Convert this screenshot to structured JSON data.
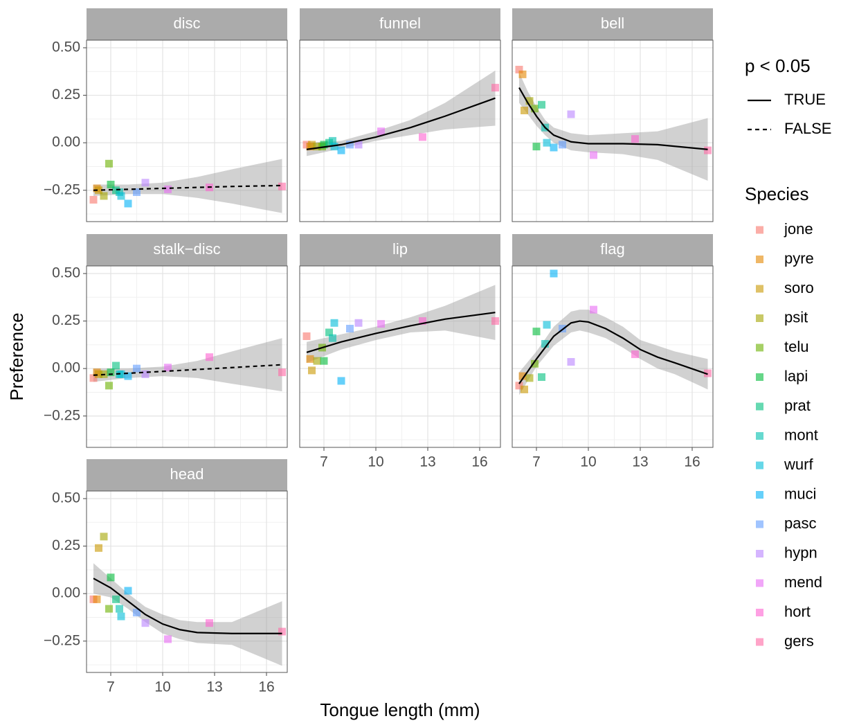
{
  "chart_data": [
    {
      "type": "scatter",
      "title": "disc",
      "x": [
        6.0,
        6.2,
        6.3,
        6.6,
        6.9,
        7.0,
        7.3,
        7.5,
        7.6,
        8.0,
        8.5,
        9.0,
        10.3,
        12.7,
        16.9
      ],
      "values": [
        -0.3,
        -0.24,
        -0.25,
        -0.28,
        -0.11,
        -0.22,
        -0.25,
        -0.26,
        -0.28,
        -0.32,
        -0.26,
        -0.21,
        -0.245,
        -0.235,
        -0.23
      ],
      "fit": {
        "linetype": "dashed",
        "x": [
          6,
          8,
          10,
          12,
          14,
          16.9
        ],
        "values": [
          -0.25,
          -0.245,
          -0.24,
          -0.235,
          -0.23,
          -0.225
        ],
        "lower": [
          -0.28,
          -0.27,
          -0.27,
          -0.29,
          -0.32,
          -0.37
        ],
        "upper": [
          -0.22,
          -0.22,
          -0.21,
          -0.18,
          -0.14,
          -0.085
        ]
      },
      "xlim": [
        5.6,
        17.2
      ],
      "xticks": [
        7,
        10,
        13,
        16
      ],
      "xminor": [
        8.5,
        11.5,
        14.5
      ],
      "ylim": [
        -0.415,
        0.54
      ],
      "yticks": [
        {
          "value": -0.25,
          "label": "−0.25"
        },
        {
          "value": 0,
          "label": "0.00"
        },
        {
          "value": 0.25,
          "label": "0.25"
        },
        {
          "value": 0.5,
          "label": "0.50"
        }
      ],
      "yminor": [
        -0.375,
        -0.125,
        0.125,
        0.375
      ]
    },
    {
      "type": "scatter",
      "title": "funnel",
      "x": [
        6.0,
        6.2,
        6.3,
        6.6,
        6.9,
        7.0,
        7.3,
        7.5,
        7.6,
        8.0,
        8.5,
        9.0,
        10.3,
        12.7,
        16.9
      ],
      "values": [
        -0.01,
        -0.02,
        -0.01,
        -0.02,
        -0.02,
        -0.01,
        0.0,
        0.01,
        -0.02,
        -0.04,
        -0.01,
        -0.01,
        0.06,
        0.03,
        0.29
      ],
      "fit": {
        "linetype": "solid",
        "x": [
          6,
          8,
          10,
          12,
          14,
          16.9
        ],
        "values": [
          -0.035,
          -0.01,
          0.03,
          0.08,
          0.14,
          0.235
        ],
        "lower": [
          -0.07,
          -0.03,
          0.01,
          0.04,
          0.07,
          0.09
        ],
        "upper": [
          0.0,
          0.01,
          0.06,
          0.12,
          0.21,
          0.38
        ]
      },
      "xlim": [
        5.6,
        17.2
      ],
      "xticks": [
        7,
        10,
        13,
        16
      ],
      "xminor": [
        8.5,
        11.5,
        14.5
      ],
      "ylim": [
        -0.415,
        0.54
      ],
      "yticks": [
        {
          "value": -0.25,
          "label": "−0.25"
        },
        {
          "value": 0,
          "label": "0.00"
        },
        {
          "value": 0.25,
          "label": "0.25"
        },
        {
          "value": 0.5,
          "label": "0.50"
        }
      ],
      "yminor": [
        -0.375,
        -0.125,
        0.125,
        0.375
      ]
    },
    {
      "type": "scatter",
      "title": "bell",
      "x": [
        6.0,
        6.2,
        6.3,
        6.6,
        6.9,
        7.0,
        7.3,
        7.5,
        7.6,
        8.0,
        8.5,
        9.0,
        10.3,
        12.7,
        16.9
      ],
      "values": [
        0.385,
        0.36,
        0.17,
        0.22,
        0.18,
        -0.02,
        0.2,
        0.08,
        0.0,
        -0.025,
        -0.01,
        0.15,
        -0.065,
        0.02,
        -0.04
      ],
      "fit": {
        "linetype": "solid",
        "x": [
          6,
          6.5,
          7,
          7.5,
          8,
          9,
          10,
          12,
          14,
          16.9
        ],
        "values": [
          0.29,
          0.21,
          0.14,
          0.08,
          0.04,
          0.005,
          -0.005,
          -0.005,
          -0.01,
          -0.035
        ],
        "lower": [
          0.21,
          0.15,
          0.09,
          0.04,
          0.0,
          -0.04,
          -0.05,
          -0.06,
          -0.09,
          -0.2
        ],
        "upper": [
          0.37,
          0.27,
          0.19,
          0.12,
          0.08,
          0.05,
          0.04,
          0.05,
          0.06,
          0.13
        ]
      },
      "xlim": [
        5.6,
        17.2
      ],
      "xticks": [
        7,
        10,
        13,
        16
      ],
      "xminor": [
        8.5,
        11.5,
        14.5
      ],
      "ylim": [
        -0.415,
        0.54
      ],
      "yticks": [
        {
          "value": -0.25,
          "label": "−0.25"
        },
        {
          "value": 0,
          "label": "0.00"
        },
        {
          "value": 0.25,
          "label": "0.25"
        },
        {
          "value": 0.5,
          "label": "0.50"
        }
      ],
      "yminor": [
        -0.375,
        -0.125,
        0.125,
        0.375
      ]
    },
    {
      "type": "scatter",
      "title": "stalk−disc",
      "x": [
        6.0,
        6.2,
        6.3,
        6.6,
        6.9,
        7.0,
        7.3,
        7.5,
        7.6,
        8.0,
        8.5,
        9.0,
        10.3,
        12.7,
        16.9
      ],
      "values": [
        -0.05,
        -0.02,
        -0.03,
        -0.03,
        -0.09,
        -0.02,
        0.015,
        -0.03,
        -0.03,
        -0.04,
        0.0,
        -0.03,
        0.005,
        0.06,
        -0.02
      ],
      "fit": {
        "linetype": "dashed",
        "x": [
          6,
          8,
          10,
          12,
          14,
          16.9
        ],
        "values": [
          -0.035,
          -0.025,
          -0.015,
          -0.005,
          0.005,
          0.02
        ],
        "lower": [
          -0.07,
          -0.05,
          -0.04,
          -0.05,
          -0.08,
          -0.12
        ],
        "upper": [
          0.0,
          0.0,
          0.01,
          0.04,
          0.09,
          0.16
        ]
      },
      "xlim": [
        5.6,
        17.2
      ],
      "xticks": [
        7,
        10,
        13,
        16
      ],
      "xminor": [
        8.5,
        11.5,
        14.5
      ],
      "ylim": [
        -0.415,
        0.54
      ],
      "yticks": [
        {
          "value": -0.25,
          "label": "−0.25"
        },
        {
          "value": 0,
          "label": "0.00"
        },
        {
          "value": 0.25,
          "label": "0.25"
        },
        {
          "value": 0.5,
          "label": "0.50"
        }
      ],
      "yminor": [
        -0.375,
        -0.125,
        0.125,
        0.375
      ]
    },
    {
      "type": "scatter",
      "title": "lip",
      "x": [
        6.0,
        6.2,
        6.3,
        6.6,
        6.9,
        7.0,
        7.3,
        7.5,
        7.6,
        8.0,
        8.5,
        9.0,
        10.3,
        12.7,
        16.9
      ],
      "values": [
        0.17,
        0.05,
        -0.01,
        0.04,
        0.11,
        0.04,
        0.19,
        0.16,
        0.24,
        -0.065,
        0.21,
        0.24,
        0.235,
        0.25,
        0.25
      ],
      "fit": {
        "linetype": "solid",
        "x": [
          6,
          8,
          10,
          12,
          14,
          16.9
        ],
        "values": [
          0.085,
          0.14,
          0.185,
          0.225,
          0.26,
          0.295
        ],
        "lower": [
          0.03,
          0.1,
          0.15,
          0.19,
          0.2,
          0.15
        ],
        "upper": [
          0.14,
          0.18,
          0.22,
          0.27,
          0.33,
          0.44
        ]
      },
      "xlim": [
        5.6,
        17.2
      ],
      "xticks": [
        7,
        10,
        13,
        16
      ],
      "xminor": [
        8.5,
        11.5,
        14.5
      ],
      "ylim": [
        -0.415,
        0.54
      ],
      "yticks": [
        {
          "value": -0.25,
          "label": "−0.25"
        },
        {
          "value": 0,
          "label": "0.00"
        },
        {
          "value": 0.25,
          "label": "0.25"
        },
        {
          "value": 0.5,
          "label": "0.50"
        }
      ],
      "yminor": [
        -0.375,
        -0.125,
        0.125,
        0.375
      ]
    },
    {
      "type": "scatter",
      "title": "flag",
      "x": [
        6.0,
        6.2,
        6.3,
        6.6,
        6.9,
        7.0,
        7.3,
        7.5,
        7.6,
        8.0,
        8.5,
        9.0,
        10.3,
        12.7,
        16.9
      ],
      "values": [
        -0.09,
        -0.04,
        -0.11,
        -0.05,
        0.025,
        0.195,
        -0.045,
        0.13,
        0.23,
        0.5,
        0.21,
        0.035,
        0.31,
        0.075,
        -0.025
      ],
      "fit": {
        "linetype": "solid",
        "x": [
          6,
          7,
          8,
          9,
          9.5,
          10,
          11,
          12,
          13,
          14,
          15,
          16.9
        ],
        "values": [
          -0.08,
          0.05,
          0.17,
          0.24,
          0.25,
          0.245,
          0.21,
          0.16,
          0.1,
          0.06,
          0.03,
          -0.03
        ],
        "lower": [
          -0.14,
          0.01,
          0.12,
          0.19,
          0.2,
          0.19,
          0.16,
          0.11,
          0.05,
          0.0,
          -0.03,
          -0.11
        ],
        "upper": [
          -0.02,
          0.09,
          0.22,
          0.3,
          0.31,
          0.31,
          0.27,
          0.22,
          0.15,
          0.12,
          0.09,
          0.05
        ]
      },
      "xlim": [
        5.6,
        17.2
      ],
      "xticks": [
        7,
        10,
        13,
        16
      ],
      "xminor": [
        8.5,
        11.5,
        14.5
      ],
      "ylim": [
        -0.415,
        0.54
      ],
      "yticks": [
        {
          "value": -0.25,
          "label": "−0.25"
        },
        {
          "value": 0,
          "label": "0.00"
        },
        {
          "value": 0.25,
          "label": "0.25"
        },
        {
          "value": 0.5,
          "label": "0.50"
        }
      ],
      "yminor": [
        -0.375,
        -0.125,
        0.125,
        0.375
      ]
    },
    {
      "type": "scatter",
      "title": "head",
      "x": [
        6.0,
        6.2,
        6.3,
        6.6,
        6.9,
        7.0,
        7.3,
        7.5,
        7.6,
        8.0,
        8.5,
        9.0,
        10.3,
        12.7,
        16.9
      ],
      "values": [
        -0.03,
        -0.03,
        0.24,
        0.3,
        -0.08,
        0.085,
        -0.03,
        -0.08,
        -0.12,
        0.015,
        -0.1,
        -0.155,
        -0.24,
        -0.155,
        -0.2
      ],
      "fit": {
        "linetype": "solid",
        "x": [
          6,
          7,
          8,
          9,
          10,
          11,
          12,
          14,
          16.9
        ],
        "values": [
          0.08,
          0.03,
          -0.04,
          -0.11,
          -0.16,
          -0.19,
          -0.205,
          -0.21,
          -0.21
        ],
        "lower": [
          0.0,
          -0.02,
          -0.08,
          -0.15,
          -0.21,
          -0.24,
          -0.26,
          -0.27,
          -0.38
        ],
        "upper": [
          0.16,
          0.08,
          0.0,
          -0.07,
          -0.11,
          -0.14,
          -0.15,
          -0.15,
          -0.04
        ]
      },
      "xlim": [
        5.6,
        17.2
      ],
      "xticks": [
        7,
        10,
        13,
        16
      ],
      "xminor": [
        8.5,
        11.5,
        14.5
      ],
      "ylim": [
        -0.415,
        0.54
      ],
      "yticks": [
        {
          "value": -0.25,
          "label": "−0.25"
        },
        {
          "value": 0,
          "label": "0.00"
        },
        {
          "value": 0.25,
          "label": "0.25"
        },
        {
          "value": 0.5,
          "label": "0.50"
        }
      ],
      "yminor": [
        -0.375,
        -0.125,
        0.125,
        0.375
      ]
    }
  ],
  "xlabel": "Tongue length (mm)",
  "ylabel": "Preference",
  "line_legend": {
    "title": "p < 0.05",
    "entries": [
      {
        "label": "TRUE",
        "linetype": "solid"
      },
      {
        "label": "FALSE",
        "linetype": "dashed"
      }
    ]
  },
  "species_legend": {
    "title": "Species",
    "names": [
      "jone",
      "pyre",
      "soro",
      "psit",
      "telu",
      "lapi",
      "prat",
      "mont",
      "wurf",
      "muci",
      "pasc",
      "hypn",
      "mend",
      "hort",
      "gers"
    ],
    "colors": [
      "#F8766D",
      "#E58700",
      "#C99800",
      "#A3A500",
      "#6BB100",
      "#00BA38",
      "#00BF7D",
      "#00C0AF",
      "#00BCD8",
      "#00B0F6",
      "#619CFF",
      "#B983FF",
      "#E76BF3",
      "#FD61D1",
      "#FF67A4"
    ]
  }
}
